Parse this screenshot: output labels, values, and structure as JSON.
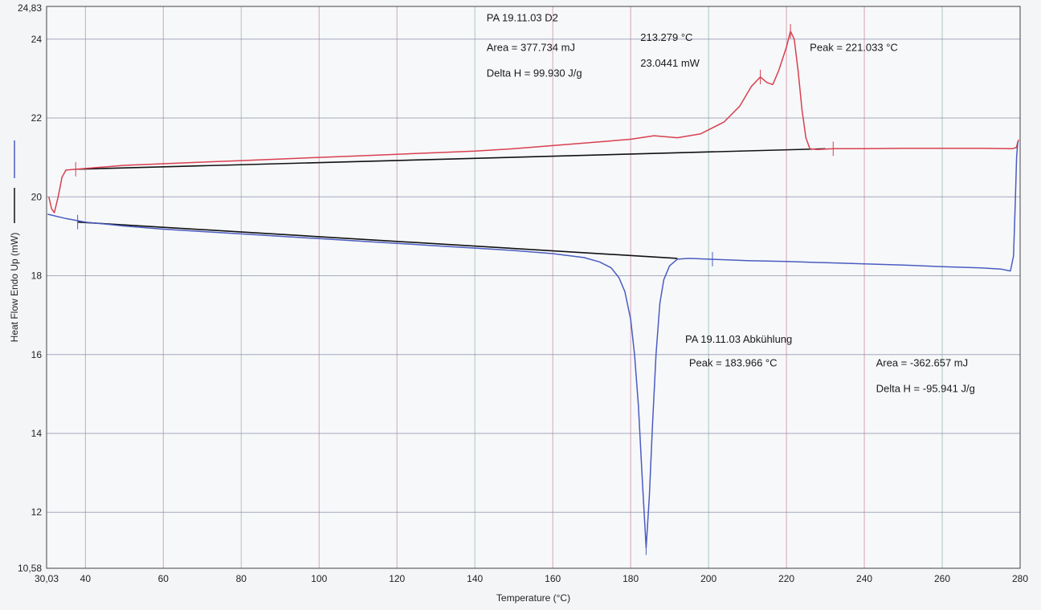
{
  "chart_data": {
    "type": "line",
    "title": "",
    "xlabel": "Temperature (°C)",
    "ylabel": "Heat Flow Endo Up (mW)",
    "xlim": [
      30.03,
      280
    ],
    "ylim": [
      10.58,
      24.83
    ],
    "x_tick_labels": [
      {
        "value": 30.03,
        "label": "30,03"
      },
      {
        "value": 40,
        "label": "40"
      },
      {
        "value": 60,
        "label": "60"
      },
      {
        "value": 80,
        "label": "80"
      },
      {
        "value": 100,
        "label": "100"
      },
      {
        "value": 120,
        "label": "120"
      },
      {
        "value": 140,
        "label": "140"
      },
      {
        "value": 160,
        "label": "160"
      },
      {
        "value": 180,
        "label": "180"
      },
      {
        "value": 200,
        "label": "200"
      },
      {
        "value": 220,
        "label": "220"
      },
      {
        "value": 240,
        "label": "240"
      },
      {
        "value": 260,
        "label": "260"
      },
      {
        "value": 280,
        "label": "280"
      }
    ],
    "y_tick_labels": [
      {
        "value": 10.58,
        "label": "10,58"
      },
      {
        "value": 12,
        "label": "12"
      },
      {
        "value": 14,
        "label": "14"
      },
      {
        "value": 16,
        "label": "16"
      },
      {
        "value": 18,
        "label": "18"
      },
      {
        "value": 20,
        "label": "20"
      },
      {
        "value": 22,
        "label": "22"
      },
      {
        "value": 24,
        "label": "24"
      },
      {
        "value": 24.83,
        "label": "24,83"
      }
    ],
    "grid": true,
    "colors": {
      "heating": "#d8404f",
      "cooling": "#4a5cc0",
      "baseline": "#111111",
      "vgrid": "#c98a9a",
      "hgrid": "#8a8fa8",
      "vgrid_alt": "#8fb8a8"
    },
    "series": [
      {
        "name": "PA 19.11.03 D2",
        "color": "#d8404f",
        "points": [
          [
            30.6,
            20.0
          ],
          [
            31.3,
            19.7
          ],
          [
            32.0,
            19.6
          ],
          [
            33.0,
            20.0
          ],
          [
            34.0,
            20.5
          ],
          [
            35.0,
            20.68
          ],
          [
            37.5,
            20.7
          ],
          [
            40,
            20.72
          ],
          [
            50,
            20.8
          ],
          [
            60,
            20.84
          ],
          [
            70,
            20.88
          ],
          [
            80,
            20.92
          ],
          [
            90,
            20.96
          ],
          [
            100,
            21.0
          ],
          [
            110,
            21.04
          ],
          [
            120,
            21.08
          ],
          [
            130,
            21.12
          ],
          [
            140,
            21.16
          ],
          [
            150,
            21.22
          ],
          [
            160,
            21.3
          ],
          [
            170,
            21.38
          ],
          [
            180,
            21.46
          ],
          [
            186,
            21.55
          ],
          [
            192,
            21.5
          ],
          [
            198,
            21.6
          ],
          [
            204,
            21.9
          ],
          [
            208,
            22.3
          ],
          [
            211,
            22.8
          ],
          [
            213.3,
            23.04
          ],
          [
            215,
            22.9
          ],
          [
            216.5,
            22.85
          ],
          [
            218,
            23.2
          ],
          [
            220,
            23.8
          ],
          [
            221.03,
            24.2
          ],
          [
            222,
            24.0
          ],
          [
            223,
            23.2
          ],
          [
            224,
            22.2
          ],
          [
            225,
            21.5
          ],
          [
            226,
            21.22
          ],
          [
            228,
            21.2
          ],
          [
            232,
            21.22
          ],
          [
            240,
            21.22
          ],
          [
            250,
            21.23
          ],
          [
            260,
            21.23
          ],
          [
            270,
            21.23
          ],
          [
            278,
            21.22
          ],
          [
            279,
            21.25
          ],
          [
            279.6,
            21.45
          ]
        ]
      },
      {
        "name": "PA 19.11.03 Abkühlung",
        "color": "#4a5cc0",
        "points": [
          [
            30.3,
            19.56
          ],
          [
            35,
            19.45
          ],
          [
            40,
            19.36
          ],
          [
            50,
            19.26
          ],
          [
            60,
            19.18
          ],
          [
            70,
            19.12
          ],
          [
            80,
            19.06
          ],
          [
            90,
            19.0
          ],
          [
            100,
            18.94
          ],
          [
            110,
            18.88
          ],
          [
            120,
            18.82
          ],
          [
            130,
            18.76
          ],
          [
            140,
            18.7
          ],
          [
            150,
            18.64
          ],
          [
            160,
            18.56
          ],
          [
            168,
            18.46
          ],
          [
            172,
            18.35
          ],
          [
            175,
            18.2
          ],
          [
            177,
            17.95
          ],
          [
            178.5,
            17.6
          ],
          [
            180,
            16.9
          ],
          [
            181,
            16.0
          ],
          [
            182,
            14.7
          ],
          [
            183,
            12.8
          ],
          [
            183.97,
            11.1
          ],
          [
            184.8,
            12.4
          ],
          [
            185.6,
            14.2
          ],
          [
            186.5,
            16.0
          ],
          [
            187.5,
            17.3
          ],
          [
            188.5,
            17.9
          ],
          [
            190,
            18.25
          ],
          [
            192,
            18.42
          ],
          [
            195,
            18.44
          ],
          [
            200,
            18.42
          ],
          [
            210,
            18.38
          ],
          [
            220,
            18.36
          ],
          [
            230,
            18.33
          ],
          [
            240,
            18.3
          ],
          [
            250,
            18.27
          ],
          [
            260,
            18.23
          ],
          [
            270,
            18.2
          ],
          [
            275,
            18.17
          ],
          [
            277.5,
            18.12
          ],
          [
            278.3,
            18.5
          ],
          [
            278.8,
            20.0
          ],
          [
            279.1,
            21.0
          ],
          [
            279.4,
            21.4
          ]
        ]
      }
    ],
    "baselines": [
      {
        "from": [
          37.5,
          20.7
        ],
        "to": [
          230,
          21.22
        ]
      },
      {
        "from": [
          38,
          19.36
        ],
        "to": [
          192,
          18.44
        ]
      }
    ],
    "markers": [
      {
        "x": 37.5,
        "y": 20.7,
        "series": "heating"
      },
      {
        "x": 213.3,
        "y": 23.04,
        "series": "heating"
      },
      {
        "x": 221.03,
        "y": 24.2,
        "series": "heating"
      },
      {
        "x": 232,
        "y": 21.22,
        "series": "heating"
      },
      {
        "x": 38,
        "y": 19.36,
        "series": "cooling"
      },
      {
        "x": 183.97,
        "y": 11.1,
        "series": "cooling"
      },
      {
        "x": 201,
        "y": 18.42,
        "series": "cooling"
      }
    ],
    "annotations": [
      {
        "id": "heating-name",
        "text": "PA 19.11.03 D2",
        "x": 143,
        "y": 24.45,
        "color": "#d8404f"
      },
      {
        "id": "heating-area",
        "text": "Area = 377.734 mJ",
        "x": 143,
        "y": 23.7,
        "color": "#1a1a1a"
      },
      {
        "id": "heating-delta",
        "text": "Delta H = 99.930 J/g",
        "x": 143,
        "y": 23.05,
        "color": "#1a1a1a"
      },
      {
        "id": "shoulder-temp",
        "text": "213.279 °C",
        "x": 182.5,
        "y": 23.95,
        "color": "#1a1a1a"
      },
      {
        "id": "shoulder-mw",
        "text": "23.0441 mW",
        "x": 182.5,
        "y": 23.3,
        "color": "#1a1a1a"
      },
      {
        "id": "heating-peak",
        "text": "Peak = 221.033 °C",
        "x": 226,
        "y": 23.7,
        "color": "#1a1a1a"
      },
      {
        "id": "cooling-name",
        "text": "PA 19.11.03 Abkühlung",
        "x": 194,
        "y": 16.3,
        "color": "#4a5cc0"
      },
      {
        "id": "cooling-peak",
        "text": "Peak = 183.966 °C",
        "x": 195,
        "y": 15.7,
        "color": "#1a1a1a"
      },
      {
        "id": "cooling-area",
        "text": "Area = -362.657 mJ",
        "x": 243,
        "y": 15.7,
        "color": "#1a1a1a"
      },
      {
        "id": "cooling-delta",
        "text": "Delta H = -95.941 J/g",
        "x": 243,
        "y": 15.05,
        "color": "#1a1a1a"
      }
    ]
  }
}
